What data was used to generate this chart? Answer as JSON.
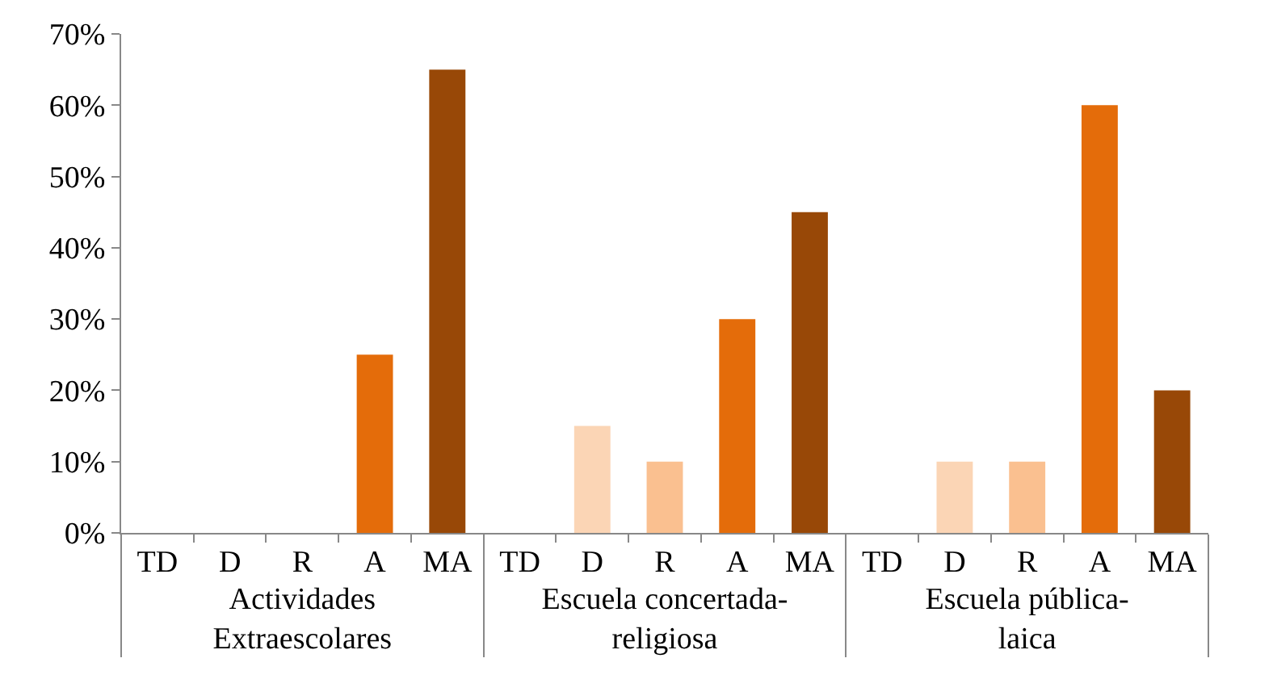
{
  "chart_data": {
    "type": "bar",
    "categories": [
      "TD",
      "D",
      "R",
      "A",
      "MA",
      "TD",
      "D",
      "R",
      "A",
      "MA",
      "TD",
      "D",
      "R",
      "A",
      "MA"
    ],
    "values": [
      0,
      0,
      0,
      25,
      65,
      0,
      15,
      10,
      30,
      45,
      0,
      10,
      10,
      60,
      20
    ],
    "colors": [
      "#fde9d9",
      "#fbd5b5",
      "#fac090",
      "#e46c0a",
      "#984807",
      "#fde9d9",
      "#fbd5b5",
      "#fac090",
      "#e46c0a",
      "#984807",
      "#fde9d9",
      "#fbd5b5",
      "#fac090",
      "#e46c0a",
      "#984807"
    ],
    "annotations": [
      "Actividades\nExtraescolares",
      "Escuela concertada-\nreligiosa",
      "Escuela pública-\nlaica"
    ],
    "ylim": [
      0,
      70
    ],
    "yticks": [
      {
        "value": 0,
        "label": "0%"
      },
      {
        "value": 10,
        "label": "10%"
      },
      {
        "value": 20,
        "label": "20%"
      },
      {
        "value": 30,
        "label": "30%"
      },
      {
        "value": 40,
        "label": "40%"
      },
      {
        "value": 50,
        "label": "50%"
      },
      {
        "value": 60,
        "label": "60%"
      },
      {
        "value": 70,
        "label": "70%"
      }
    ]
  }
}
